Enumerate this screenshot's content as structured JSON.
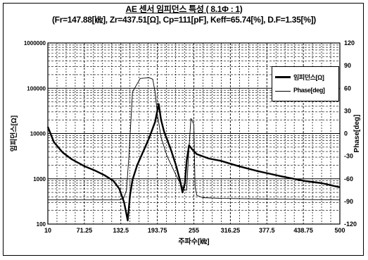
{
  "page": {
    "title_line1": "AE 센서 임피던스 특성 ( 8.1Φ : 1)",
    "title_line2": "(Fr=147.88[㎑], Zr=437.51[Ω], Cp=111[pF], Keff=65.74[%], D.F=1.35[%])"
  },
  "chart_data": {
    "type": "line",
    "title": "AE 센서 임피던스 특성 ( 8.1Φ : 1)",
    "subtitle": "(Fr=147.88[㎑], Zr=437.51[Ω], Cp=111[pF], Keff=65.74[%], D.F=1.35[%])",
    "xlabel": "주파수[㎑]",
    "ylabel": "임피던스[Ω]",
    "y2label": "Phase[deg]",
    "xlim": [
      10,
      500
    ],
    "ylim": [
      100,
      100000
    ],
    "y_scale": "log",
    "y2lim": [
      -120,
      120
    ],
    "grid": true,
    "legend_position": "right",
    "x_ticks": [
      "10",
      "71.25",
      "132.5",
      "193.75",
      "255",
      "316.25",
      "377.5",
      "438.75",
      "500"
    ],
    "y_ticks": [
      "100",
      "1000",
      "10000",
      "100000",
      "1000000"
    ],
    "y2_ticks": [
      "120",
      "90",
      "60",
      "30",
      "0",
      "-30",
      "-60",
      "-90",
      "-120"
    ],
    "series": [
      {
        "name": "임피던스[Ω]",
        "axis": "left",
        "style": "thick",
        "x": [
          10,
          20,
          35,
          50,
          71.25,
          90,
          105,
          120,
          130,
          138,
          144,
          147.88,
          152,
          160,
          170,
          180,
          190,
          196,
          200,
          205,
          215,
          225,
          232,
          236,
          240,
          243,
          247,
          252,
          260,
          280,
          300,
          330,
          360,
          400,
          440,
          470,
          500
        ],
        "y": [
          14000,
          6500,
          3800,
          2700,
          1900,
          1500,
          1200,
          900,
          600,
          300,
          120,
          437.51,
          950,
          2000,
          4000,
          8000,
          18000,
          45000,
          20000,
          11000,
          5000,
          2000,
          900,
          500,
          800,
          2500,
          5500,
          4500,
          3500,
          2800,
          2500,
          1900,
          1500,
          1150,
          900,
          800,
          650
        ]
      },
      {
        "name": "Phase[deg]",
        "axis": "right",
        "style": "thin",
        "x": [
          10,
          100,
          130,
          137,
          142,
          146,
          152,
          165,
          180,
          186,
          190,
          194,
          200,
          210,
          225,
          235,
          240,
          243,
          246,
          250,
          255,
          257,
          260,
          270,
          300,
          400,
          500
        ],
        "y": [
          -88,
          -88,
          -88,
          -86,
          -75,
          -30,
          55,
          73,
          74,
          72,
          55,
          25,
          -5,
          -30,
          -55,
          -70,
          -75,
          -75,
          -30,
          20,
          12,
          -70,
          -82,
          -85,
          -86,
          -87,
          -88
        ]
      }
    ]
  }
}
